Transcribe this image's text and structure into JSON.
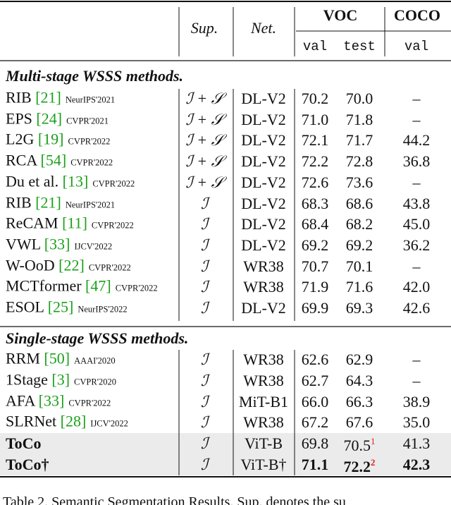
{
  "header": {
    "sup": "Sup.",
    "net": "Net.",
    "voc": "VOC",
    "coco": "COCO",
    "voc_val": "val",
    "voc_test": "test",
    "coco_val": "val"
  },
  "sections": [
    {
      "title": "Multi-stage WSSS methods.",
      "rows": [
        {
          "method": "RIB",
          "ref": "[21]",
          "venue": "NeurIPS'2021",
          "sup": "ℐ + 𝒮",
          "net": "DL-V2",
          "voc_val": "70.2",
          "voc_test": "70.0",
          "coco_val": "–"
        },
        {
          "method": "EPS",
          "ref": "[24]",
          "venue": "CVPR'2021",
          "sup": "ℐ + 𝒮",
          "net": "DL-V2",
          "voc_val": "71.0",
          "voc_test": "71.8",
          "coco_val": "–"
        },
        {
          "method": "L2G",
          "ref": "[19]",
          "venue": "CVPR'2022",
          "sup": "ℐ + 𝒮",
          "net": "DL-V2",
          "voc_val": "72.1",
          "voc_test": "71.7",
          "coco_val": "44.2"
        },
        {
          "method": "RCA",
          "ref": "[54]",
          "venue": "CVPR'2022",
          "sup": "ℐ + 𝒮",
          "net": "DL-V2",
          "voc_val": "72.2",
          "voc_test": "72.8",
          "coco_val": "36.8"
        },
        {
          "method": "Du et al.",
          "ref": "[13]",
          "venue": "CVPR'2022",
          "sup": "ℐ + 𝒮",
          "net": "DL-V2",
          "voc_val": "72.6",
          "voc_test": "73.6",
          "coco_val": "–"
        },
        {
          "method": "RIB",
          "ref": "[21]",
          "venue": "NeurIPS'2021",
          "sup": "ℐ",
          "net": "DL-V2",
          "voc_val": "68.3",
          "voc_test": "68.6",
          "coco_val": "43.8"
        },
        {
          "method": "ReCAM",
          "ref": "[11]",
          "venue": "CVPR'2022",
          "sup": "ℐ",
          "net": "DL-V2",
          "voc_val": "68.4",
          "voc_test": "68.2",
          "coco_val": "45.0"
        },
        {
          "method": "VWL",
          "ref": "[33]",
          "venue": "IJCV'2022",
          "sup": "ℐ",
          "net": "DL-V2",
          "voc_val": "69.2",
          "voc_test": "69.2",
          "coco_val": "36.2"
        },
        {
          "method": "W-OoD",
          "ref": "[22]",
          "venue": "CVPR'2022",
          "sup": "ℐ",
          "net": "WR38",
          "voc_val": "70.7",
          "voc_test": "70.1",
          "coco_val": "–"
        },
        {
          "method": "MCTformer",
          "ref": "[47]",
          "venue": "CVPR'2022",
          "sup": "ℐ",
          "net": "WR38",
          "voc_val": "71.9",
          "voc_test": "71.6",
          "coco_val": "42.0"
        },
        {
          "method": "ESOL",
          "ref": "[25]",
          "venue": "NeurIPS'2022",
          "sup": "ℐ",
          "net": "DL-V2",
          "voc_val": "69.9",
          "voc_test": "69.3",
          "coco_val": "42.6"
        }
      ]
    },
    {
      "title": "Single-stage WSSS methods.",
      "rows": [
        {
          "method": "RRM",
          "ref": "[50]",
          "venue": "AAAI'2020",
          "sup": "ℐ",
          "net": "WR38",
          "voc_val": "62.6",
          "voc_test": "62.9",
          "coco_val": "–"
        },
        {
          "method": "1Stage",
          "ref": "[3]",
          "venue": "CVPR'2020",
          "sup": "ℐ",
          "net": "WR38",
          "voc_val": "62.7",
          "voc_test": "64.3",
          "coco_val": "–"
        },
        {
          "method": "AFA",
          "ref": "[33]",
          "venue": "CVPR'2022",
          "sup": "ℐ",
          "net": "MiT-B1",
          "voc_val": "66.0",
          "voc_test": "66.3",
          "coco_val": "38.9"
        },
        {
          "method": "SLRNet",
          "ref": "[28]",
          "venue": "IJCV'2022",
          "sup": "ℐ",
          "net": "WR38",
          "voc_val": "67.2",
          "voc_test": "67.6",
          "coco_val": "35.0"
        },
        {
          "method": "ToCo",
          "sup": "ℐ",
          "net": "ViT-B",
          "voc_val": "69.8",
          "voc_test": "70.5",
          "voc_test_note": "1",
          "coco_val": "41.3",
          "shaded": true
        },
        {
          "method": "ToCo†",
          "sup": "ℐ",
          "net": "ViT-B†",
          "voc_val": "71.1",
          "voc_test": "72.2",
          "voc_test_note": "2",
          "coco_val": "42.3",
          "shaded": true,
          "best": true
        }
      ]
    }
  ],
  "caption": "Table 2. Semantic Segmentation Results. Sup. denotes the su"
}
